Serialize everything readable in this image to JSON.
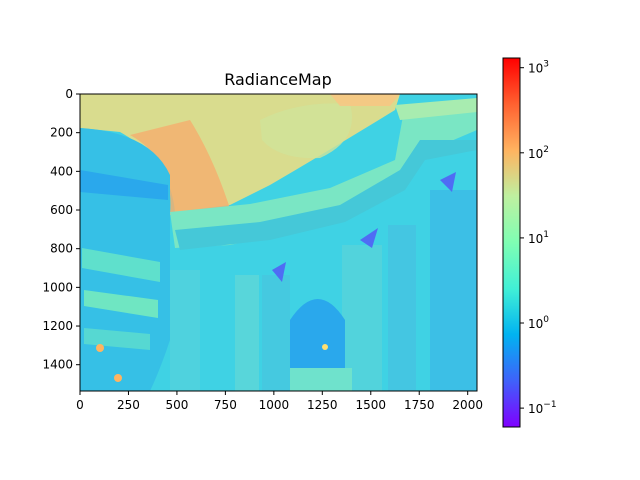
{
  "chart_data": {
    "type": "heatmap",
    "title": "RadianceMap",
    "image_width": 2048,
    "image_height": 1536,
    "x_ticks": [
      0,
      250,
      500,
      750,
      1000,
      1250,
      1500,
      1750,
      2000
    ],
    "y_ticks": [
      0,
      200,
      400,
      600,
      800,
      1000,
      1200,
      1400
    ],
    "colormap": "rainbow",
    "colorbar": {
      "scale": "log",
      "range": [
        0.06,
        1300
      ],
      "ticks": [
        {
          "value": 0.1,
          "base": "10",
          "exp": "−1"
        },
        {
          "value": 1,
          "base": "10",
          "exp": "0"
        },
        {
          "value": 10,
          "base": "10",
          "exp": "1"
        },
        {
          "value": 100,
          "base": "10",
          "exp": "2"
        },
        {
          "value": 1000,
          "base": "10",
          "exp": "3"
        }
      ]
    },
    "colors": {
      "frame": "#000000",
      "gradient_stops": [
        "#7f00ff",
        "#3f61fa",
        "#01b3f1",
        "#41f0d6",
        "#7ffeb3",
        "#bef0a0",
        "#ffb360",
        "#ff6130",
        "#ff0000"
      ]
    }
  }
}
